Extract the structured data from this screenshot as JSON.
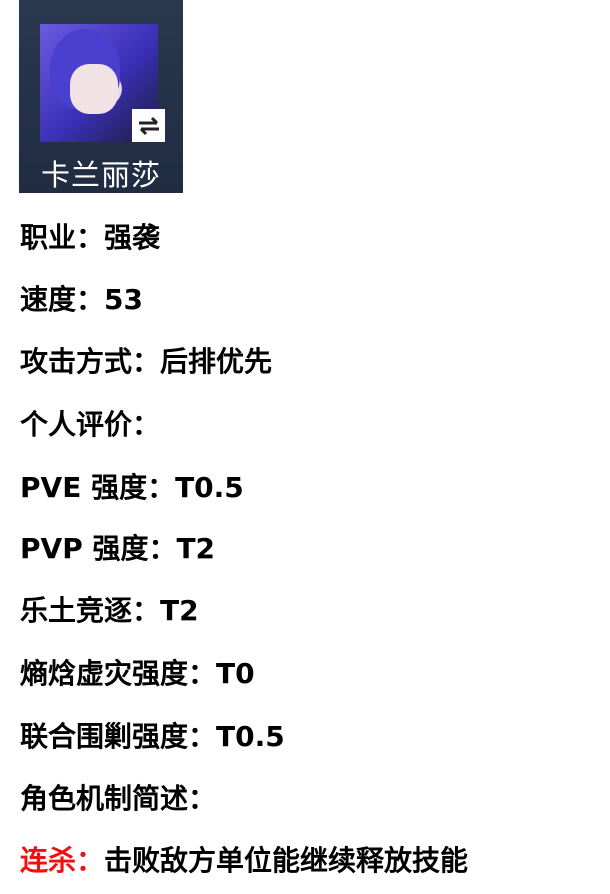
{
  "character": {
    "name": "卡兰丽莎",
    "swap_icon": "swap-arrows-icon"
  },
  "stats": [
    "职业：强袭",
    "速度：53",
    "攻击方式：后排优先",
    "个人评价：",
    "PVE 强度：T0.5",
    "PVP 强度：T2",
    "乐土竞逐：T2",
    "熵焓虚灾强度：T0",
    "联合围剿强度：T0.5",
    "角色机制简述："
  ],
  "skill": {
    "name": "连杀：",
    "description": "击败敌方单位能继续释放技能",
    "name_color": "#f01010"
  }
}
